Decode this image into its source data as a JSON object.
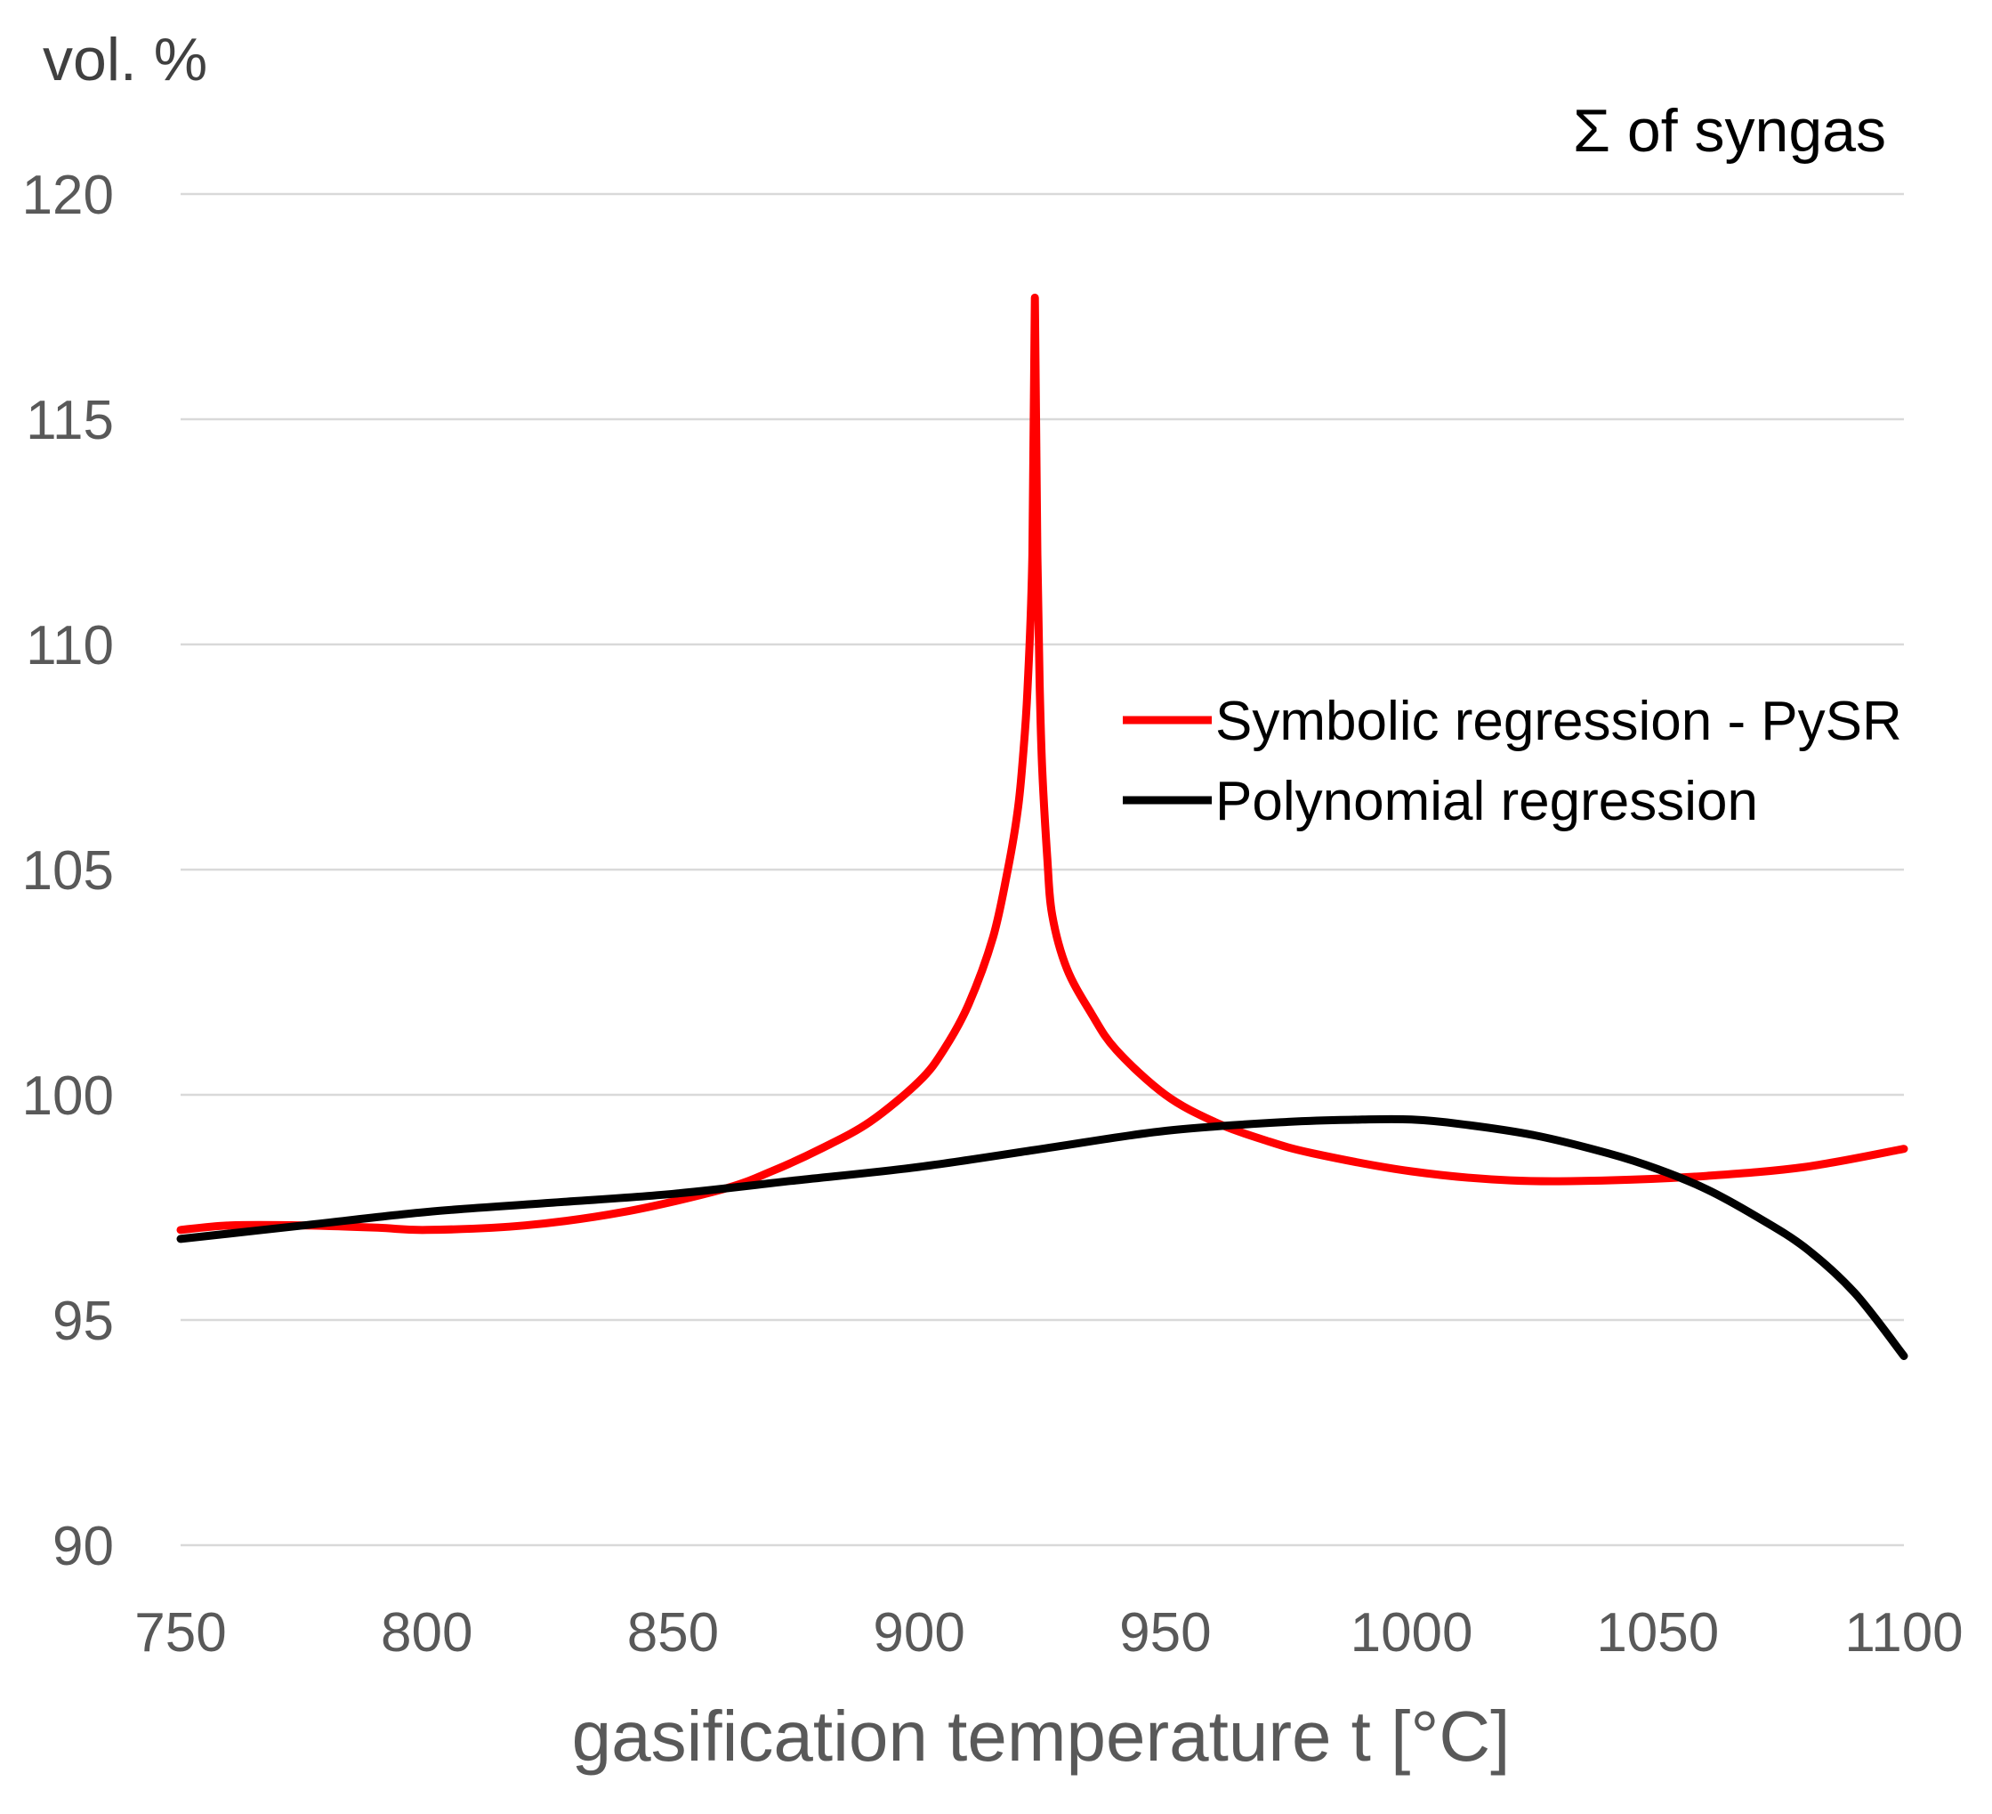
{
  "chart_data": {
    "type": "line",
    "title": "Σ of syngas",
    "ylabel": "vol. %",
    "xlabel": "gasification temperature t [°C]",
    "xlim": [
      750,
      1100
    ],
    "ylim": [
      90,
      120
    ],
    "xticks": [
      "750",
      "800",
      "850",
      "900",
      "950",
      "1000",
      "1050",
      "1100"
    ],
    "yticks": [
      "90",
      "95",
      "100",
      "105",
      "110",
      "115",
      "120"
    ],
    "grid": true,
    "legend_position": "right-middle",
    "series": [
      {
        "name": "Symbolic regression - PySR",
        "color": "#ff0000",
        "x": [
          750,
          760,
          775,
          790,
          800,
          820,
          840,
          860,
          870,
          880,
          890,
          900,
          905,
          910,
          915,
          918,
          920,
          921,
          922,
          923,
          923.5,
          924,
          924.5,
          925,
          926,
          927,
          930,
          935,
          940,
          950,
          960,
          970,
          980,
          1000,
          1020,
          1040,
          1060,
          1080,
          1100
        ],
        "values": [
          97.0,
          97.1,
          97.1,
          97.05,
          97.0,
          97.1,
          97.4,
          97.9,
          98.3,
          98.8,
          99.4,
          100.3,
          101.0,
          102.0,
          103.5,
          105.0,
          106.3,
          107.4,
          109.0,
          112.0,
          117.7,
          112.0,
          109.0,
          107.2,
          105.3,
          104.0,
          102.8,
          101.8,
          101.0,
          100.0,
          99.4,
          99.0,
          98.7,
          98.3,
          98.1,
          98.1,
          98.2,
          98.4,
          98.8
        ]
      },
      {
        "name": "Polynomial regression",
        "color": "#000000",
        "x": [
          750,
          775,
          800,
          825,
          850,
          875,
          900,
          925,
          950,
          975,
          990,
          1000,
          1010,
          1025,
          1040,
          1050,
          1060,
          1070,
          1080,
          1090,
          1100
        ],
        "values": [
          96.8,
          97.1,
          97.4,
          97.6,
          97.8,
          98.1,
          98.4,
          98.8,
          99.2,
          99.4,
          99.45,
          99.45,
          99.35,
          99.1,
          98.7,
          98.35,
          97.9,
          97.3,
          96.6,
          95.6,
          94.2
        ]
      }
    ]
  }
}
